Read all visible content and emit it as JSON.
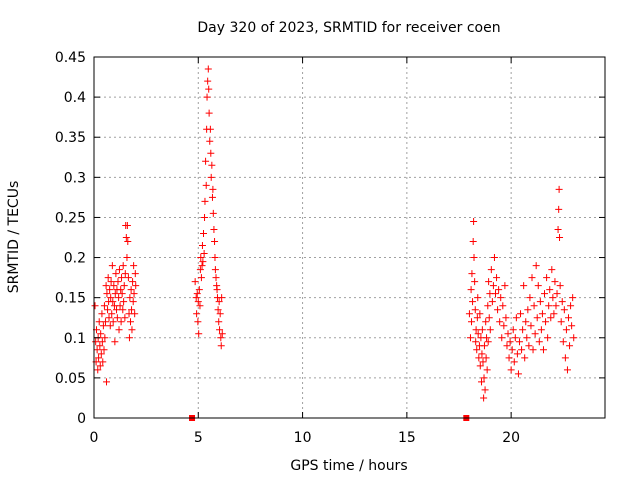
{
  "chart_data": {
    "type": "scatter",
    "title": "Day 320 of 2023, SRMTID for receiver coen",
    "xlabel": "GPS time / hours",
    "ylabel": "SRMTID / TECUs",
    "xlim": [
      0,
      24.5
    ],
    "ylim": [
      0,
      0.45
    ],
    "xticks": [
      0,
      5,
      10,
      15,
      20
    ],
    "yticks": [
      0,
      0.05,
      0.1,
      0.15,
      0.2,
      0.25,
      0.3,
      0.35,
      0.4,
      0.45
    ],
    "ytick_labels": [
      "0",
      "0.05",
      "0.1",
      "0.15",
      "0.2",
      "0.25",
      "0.3",
      "0.35",
      "0.4",
      "0.45"
    ],
    "grid": true,
    "marker": "+",
    "color": "#ff0000",
    "outage_markers": [
      4.7,
      17.85
    ],
    "series": [
      {
        "name": "SRMTID",
        "points": [
          [
            0.05,
            0.14
          ],
          [
            0.08,
            0.095
          ],
          [
            0.1,
            0.07
          ],
          [
            0.12,
            0.11
          ],
          [
            0.15,
            0.085
          ],
          [
            0.18,
            0.06
          ],
          [
            0.2,
            0.1
          ],
          [
            0.22,
            0.075
          ],
          [
            0.25,
            0.12
          ],
          [
            0.28,
            0.09
          ],
          [
            0.3,
            0.065
          ],
          [
            0.32,
            0.105
          ],
          [
            0.35,
            0.08
          ],
          [
            0.38,
            0.13
          ],
          [
            0.4,
            0.095
          ],
          [
            0.42,
            0.07
          ],
          [
            0.45,
            0.115
          ],
          [
            0.48,
            0.085
          ],
          [
            0.5,
            0.14
          ],
          [
            0.52,
            0.1
          ],
          [
            0.55,
            0.12
          ],
          [
            0.58,
            0.165
          ],
          [
            0.6,
            0.045
          ],
          [
            0.62,
            0.155
          ],
          [
            0.65,
            0.135
          ],
          [
            0.68,
            0.175
          ],
          [
            0.7,
            0.145
          ],
          [
            0.72,
            0.125
          ],
          [
            0.75,
            0.16
          ],
          [
            0.78,
            0.115
          ],
          [
            0.8,
            0.15
          ],
          [
            0.82,
            0.17
          ],
          [
            0.85,
            0.13
          ],
          [
            0.88,
            0.19
          ],
          [
            0.9,
            0.145
          ],
          [
            0.92,
            0.12
          ],
          [
            0.95,
            0.165
          ],
          [
            0.98,
            0.14
          ],
          [
            1.0,
            0.095
          ],
          [
            1.02,
            0.155
          ],
          [
            1.05,
            0.18
          ],
          [
            1.08,
            0.135
          ],
          [
            1.1,
            0.16
          ],
          [
            1.12,
            0.125
          ],
          [
            1.15,
            0.17
          ],
          [
            1.18,
            0.15
          ],
          [
            1.2,
            0.11
          ],
          [
            1.22,
            0.185
          ],
          [
            1.25,
            0.14
          ],
          [
            1.28,
            0.16
          ],
          [
            1.3,
            0.12
          ],
          [
            1.32,
            0.175
          ],
          [
            1.35,
            0.155
          ],
          [
            1.38,
            0.135
          ],
          [
            1.4,
            0.19
          ],
          [
            1.42,
            0.145
          ],
          [
            1.45,
            0.165
          ],
          [
            1.48,
            0.125
          ],
          [
            1.5,
            0.18
          ],
          [
            1.52,
            0.24
          ],
          [
            1.55,
            0.225
          ],
          [
            1.58,
            0.2
          ],
          [
            1.6,
            0.24
          ],
          [
            1.62,
            0.22
          ],
          [
            1.65,
            0.175
          ],
          [
            1.68,
            0.13
          ],
          [
            1.7,
            0.1
          ],
          [
            1.72,
            0.15
          ],
          [
            1.75,
            0.12
          ],
          [
            1.78,
            0.16
          ],
          [
            1.8,
            0.135
          ],
          [
            1.82,
            0.11
          ],
          [
            1.85,
            0.17
          ],
          [
            1.88,
            0.145
          ],
          [
            1.9,
            0.19
          ],
          [
            1.92,
            0.155
          ],
          [
            1.95,
            0.13
          ],
          [
            1.98,
            0.18
          ],
          [
            2.0,
            0.165
          ],
          [
            4.85,
            0.17
          ],
          [
            4.9,
            0.15
          ],
          [
            4.92,
            0.13
          ],
          [
            4.95,
            0.155
          ],
          [
            4.98,
            0.12
          ],
          [
            5.0,
            0.145
          ],
          [
            5.02,
            0.105
          ],
          [
            5.05,
            0.16
          ],
          [
            5.08,
            0.14
          ],
          [
            5.1,
            0.185
          ],
          [
            5.12,
            0.2
          ],
          [
            5.15,
            0.175
          ],
          [
            5.18,
            0.19
          ],
          [
            5.2,
            0.215
          ],
          [
            5.22,
            0.195
          ],
          [
            5.25,
            0.23
          ],
          [
            5.28,
            0.205
          ],
          [
            5.3,
            0.25
          ],
          [
            5.32,
            0.27
          ],
          [
            5.35,
            0.32
          ],
          [
            5.38,
            0.29
          ],
          [
            5.4,
            0.36
          ],
          [
            5.42,
            0.4
          ],
          [
            5.45,
            0.42
          ],
          [
            5.48,
            0.435
          ],
          [
            5.5,
            0.41
          ],
          [
            5.52,
            0.38
          ],
          [
            5.55,
            0.345
          ],
          [
            5.58,
            0.36
          ],
          [
            5.6,
            0.33
          ],
          [
            5.62,
            0.3
          ],
          [
            5.65,
            0.315
          ],
          [
            5.68,
            0.275
          ],
          [
            5.7,
            0.285
          ],
          [
            5.72,
            0.255
          ],
          [
            5.75,
            0.235
          ],
          [
            5.78,
            0.22
          ],
          [
            5.8,
            0.2
          ],
          [
            5.82,
            0.185
          ],
          [
            5.85,
            0.175
          ],
          [
            5.88,
            0.165
          ],
          [
            5.9,
            0.16
          ],
          [
            5.92,
            0.15
          ],
          [
            5.95,
            0.135
          ],
          [
            5.98,
            0.12
          ],
          [
            6.0,
            0.145
          ],
          [
            6.02,
            0.11
          ],
          [
            6.05,
            0.13
          ],
          [
            6.08,
            0.1
          ],
          [
            6.1,
            0.09
          ],
          [
            6.12,
            0.15
          ],
          [
            6.15,
            0.105
          ],
          [
            18.0,
            0.13
          ],
          [
            18.05,
            0.1
          ],
          [
            18.08,
            0.16
          ],
          [
            18.1,
            0.12
          ],
          [
            18.12,
            0.18
          ],
          [
            18.15,
            0.145
          ],
          [
            18.18,
            0.22
          ],
          [
            18.2,
            0.245
          ],
          [
            18.22,
            0.2
          ],
          [
            18.25,
            0.17
          ],
          [
            18.28,
            0.135
          ],
          [
            18.3,
            0.095
          ],
          [
            18.32,
            0.11
          ],
          [
            18.35,
            0.085
          ],
          [
            18.38,
            0.125
          ],
          [
            18.4,
            0.15
          ],
          [
            18.42,
            0.105
          ],
          [
            18.45,
            0.075
          ],
          [
            18.48,
            0.09
          ],
          [
            18.5,
            0.13
          ],
          [
            18.52,
            0.065
          ],
          [
            18.55,
            0.1
          ],
          [
            18.58,
            0.045
          ],
          [
            18.6,
            0.08
          ],
          [
            18.62,
            0.11
          ],
          [
            18.65,
            0.07
          ],
          [
            18.68,
            0.025
          ],
          [
            18.7,
            0.05
          ],
          [
            18.72,
            0.09
          ],
          [
            18.75,
            0.035
          ],
          [
            18.78,
            0.12
          ],
          [
            18.8,
            0.075
          ],
          [
            18.82,
            0.1
          ],
          [
            18.85,
            0.06
          ],
          [
            18.88,
            0.14
          ],
          [
            18.9,
            0.095
          ],
          [
            18.92,
            0.17
          ],
          [
            18.95,
            0.125
          ],
          [
            18.98,
            0.155
          ],
          [
            19.0,
            0.11
          ],
          [
            19.05,
            0.185
          ],
          [
            19.1,
            0.145
          ],
          [
            19.15,
            0.165
          ],
          [
            19.2,
            0.2
          ],
          [
            19.25,
            0.155
          ],
          [
            19.3,
            0.175
          ],
          [
            19.35,
            0.135
          ],
          [
            19.4,
            0.16
          ],
          [
            19.45,
            0.12
          ],
          [
            19.5,
            0.15
          ],
          [
            19.55,
            0.1
          ],
          [
            19.6,
            0.14
          ],
          [
            19.65,
            0.115
          ],
          [
            19.7,
            0.165
          ],
          [
            19.75,
            0.125
          ],
          [
            19.8,
            0.09
          ],
          [
            19.85,
            0.105
          ],
          [
            19.9,
            0.075
          ],
          [
            19.95,
            0.095
          ],
          [
            20.0,
            0.06
          ],
          [
            20.05,
            0.085
          ],
          [
            20.1,
            0.11
          ],
          [
            20.15,
            0.07
          ],
          [
            20.2,
            0.1
          ],
          [
            20.25,
            0.125
          ],
          [
            20.3,
            0.08
          ],
          [
            20.35,
            0.055
          ],
          [
            20.4,
            0.095
          ],
          [
            20.45,
            0.13
          ],
          [
            20.5,
            0.085
          ],
          [
            20.55,
            0.11
          ],
          [
            20.6,
            0.165
          ],
          [
            20.65,
            0.075
          ],
          [
            20.7,
            0.12
          ],
          [
            20.75,
            0.1
          ],
          [
            20.8,
            0.135
          ],
          [
            20.85,
            0.09
          ],
          [
            20.9,
            0.15
          ],
          [
            20.95,
            0.115
          ],
          [
            21.0,
            0.175
          ],
          [
            21.05,
            0.085
          ],
          [
            21.1,
            0.14
          ],
          [
            21.15,
            0.105
          ],
          [
            21.2,
            0.19
          ],
          [
            21.25,
            0.125
          ],
          [
            21.3,
            0.165
          ],
          [
            21.35,
            0.095
          ],
          [
            21.4,
            0.145
          ],
          [
            21.45,
            0.11
          ],
          [
            21.5,
            0.13
          ],
          [
            21.55,
            0.085
          ],
          [
            21.6,
            0.155
          ],
          [
            21.65,
            0.12
          ],
          [
            21.7,
            0.175
          ],
          [
            21.75,
            0.1
          ],
          [
            21.8,
            0.14
          ],
          [
            21.85,
            0.16
          ],
          [
            21.9,
            0.125
          ],
          [
            21.95,
            0.185
          ],
          [
            22.0,
            0.15
          ],
          [
            22.05,
            0.13
          ],
          [
            22.1,
            0.17
          ],
          [
            22.15,
            0.14
          ],
          [
            22.2,
            0.155
          ],
          [
            22.25,
            0.235
          ],
          [
            22.28,
            0.26
          ],
          [
            22.3,
            0.285
          ],
          [
            22.32,
            0.225
          ],
          [
            22.35,
            0.165
          ],
          [
            22.4,
            0.12
          ],
          [
            22.45,
            0.145
          ],
          [
            22.5,
            0.095
          ],
          [
            22.55,
            0.135
          ],
          [
            22.6,
            0.075
          ],
          [
            22.65,
            0.11
          ],
          [
            22.7,
            0.06
          ],
          [
            22.75,
            0.125
          ],
          [
            22.8,
            0.09
          ],
          [
            22.85,
            0.14
          ],
          [
            22.9,
            0.115
          ],
          [
            22.95,
            0.15
          ],
          [
            23.0,
            0.1
          ]
        ]
      }
    ]
  }
}
